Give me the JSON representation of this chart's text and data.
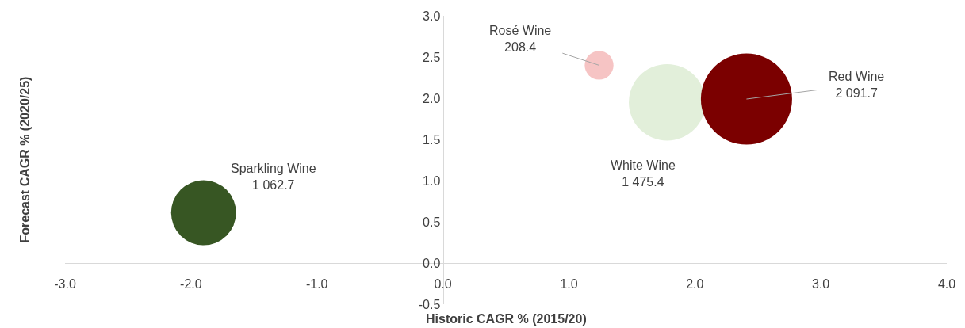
{
  "chart_data": {
    "type": "bubble",
    "xlabel": "Historic CAGR % (2015/20)",
    "ylabel": "Forecast CAGR % (2020/25)",
    "xlim": [
      -3,
      4
    ],
    "xticks": [
      {
        "value": -3,
        "label": "-3.0"
      },
      {
        "value": -2,
        "label": "-2.0"
      },
      {
        "value": -1,
        "label": "-1.0"
      },
      {
        "value": 0,
        "label": "0.0"
      },
      {
        "value": 1,
        "label": "1.0"
      },
      {
        "value": 2,
        "label": "2.0"
      },
      {
        "value": 3,
        "label": "3.0"
      },
      {
        "value": 4,
        "label": "4.0"
      }
    ],
    "ylim": [
      -0.5,
      3
    ],
    "yticks": [
      -0.5,
      {
        "value": 0,
        "label": "0.0"
      },
      0.5,
      {
        "value": 1,
        "label": "1.0"
      },
      1.5,
      {
        "value": 2,
        "label": "2.0"
      },
      2.5,
      {
        "value": 3,
        "label": "3.0"
      }
    ],
    "legend": false,
    "series": [
      {
        "name": "Sparkling Wine",
        "color": "#375623",
        "x": [
          -1.9
        ],
        "values": [
          0.61
        ],
        "sizes": [
          1062.7
        ],
        "value_labels": [
          "1 062.7"
        ]
      },
      {
        "name": "Rosé Wine",
        "color": "#f6c4c4",
        "x": [
          1.24
        ],
        "values": [
          2.4
        ],
        "sizes": [
          208.4
        ],
        "value_labels": [
          "208.4"
        ]
      },
      {
        "name": "White Wine",
        "color": "#e2efda",
        "x": [
          1.78
        ],
        "values": [
          1.95
        ],
        "sizes": [
          1475.4
        ],
        "value_labels": [
          "1 475.4"
        ]
      },
      {
        "name": "Red Wine",
        "color": "#7b0000",
        "x": [
          2.41
        ],
        "values": [
          1.99
        ],
        "sizes": [
          2091.7
        ],
        "value_labels": [
          "2 091.7"
        ]
      }
    ]
  }
}
